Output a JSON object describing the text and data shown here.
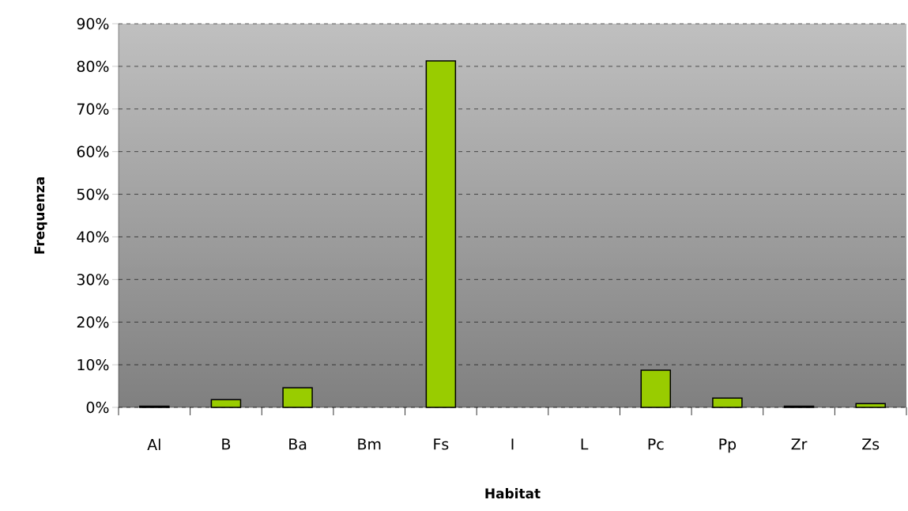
{
  "chart_data": {
    "type": "bar",
    "xlabel": "Habitat",
    "ylabel": "Frequenza",
    "categories": [
      "Al",
      "B",
      "Ba",
      "Bm",
      "Fs",
      "I",
      "L",
      "Pc",
      "Pp",
      "Zr",
      "Zs"
    ],
    "values": [
      0.3,
      1.8,
      4.6,
      0,
      81.3,
      0,
      0,
      8.7,
      2.2,
      0.3,
      0.9
    ],
    "color": "#99cc00",
    "ylim": [
      0,
      90
    ],
    "yticks": [
      {
        "value": 0,
        "label": "0%"
      },
      {
        "value": 10,
        "label": "10%"
      },
      {
        "value": 20,
        "label": "20%"
      },
      {
        "value": 30,
        "label": "30%"
      },
      {
        "value": 40,
        "label": "40%"
      },
      {
        "value": 50,
        "label": "50%"
      },
      {
        "value": 60,
        "label": "60%"
      },
      {
        "value": 70,
        "label": "70%"
      },
      {
        "value": 80,
        "label": "80%"
      },
      {
        "value": 90,
        "label": "90%"
      }
    ],
    "grid": "y"
  }
}
